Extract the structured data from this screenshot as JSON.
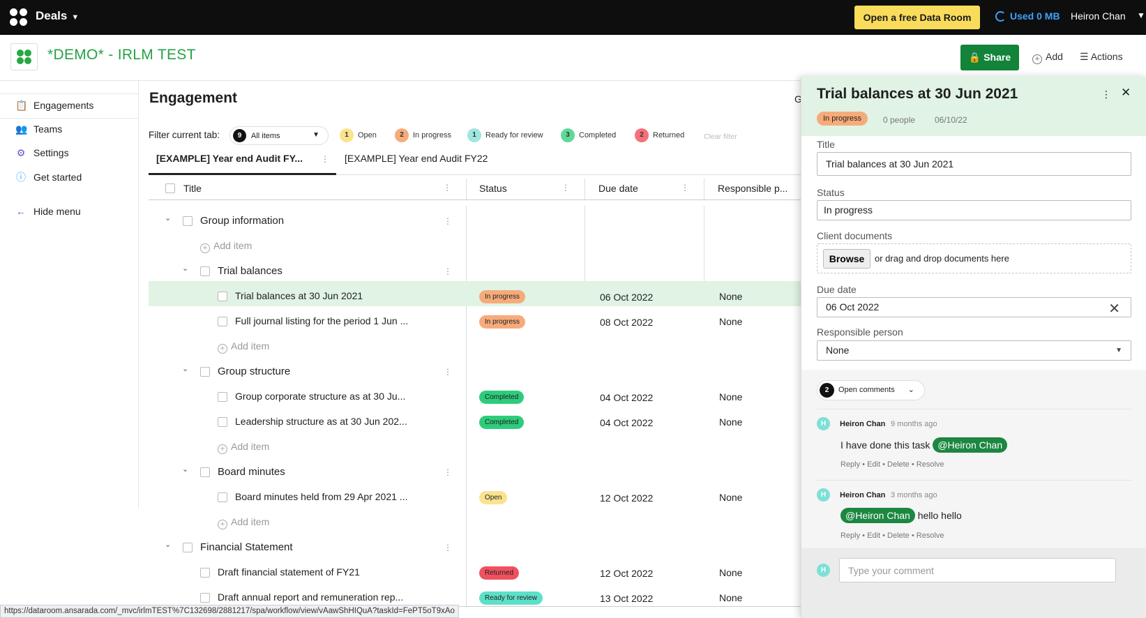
{
  "topbar": {
    "app_title": "Deals",
    "dataroom_button": "Open a free Data Room",
    "used": "Used 0 MB",
    "user_name": "Heiron Chan"
  },
  "project": {
    "title": "*DEMO* - IRLM TEST",
    "share_label": "Share",
    "add_label": "Add",
    "actions_label": "Actions"
  },
  "sidebar": {
    "items": [
      {
        "label": "Engagements",
        "icon": "engagements-icon"
      },
      {
        "label": "Teams",
        "icon": "teams-icon"
      },
      {
        "label": "Settings",
        "icon": "settings-icon"
      },
      {
        "label": "Get started",
        "icon": "info-icon"
      }
    ],
    "hide_menu": "Hide menu"
  },
  "main": {
    "title": "Engagement",
    "filter_label": "Filter current tab:",
    "filter_select": {
      "count": "9",
      "label": "All items"
    },
    "filter_chips": [
      {
        "count": "1",
        "label": "Open",
        "color": "#fbe38e"
      },
      {
        "count": "2",
        "label": "In progress",
        "color": "#f7ab7b"
      },
      {
        "count": "1",
        "label": "Ready for review",
        "color": "#9ee7e0"
      },
      {
        "count": "3",
        "label": "Completed",
        "color": "#5fd99a"
      },
      {
        "count": "2",
        "label": "Returned",
        "color": "#f5707a"
      }
    ],
    "clear_filter": "Clear filter",
    "tabs": [
      "[EXAMPLE] Year end Audit FY...",
      "[EXAMPLE] Year end Audit FY22"
    ],
    "columns": [
      "Title",
      "Status",
      "Due date",
      "Responsible p..."
    ],
    "add_item_label": "Add item",
    "groups": {
      "g1": "Group information",
      "g1a": "Trial balances",
      "g1b": "Group structure",
      "g1c": "Board minutes",
      "g2": "Financial Statement"
    },
    "rows": [
      {
        "title": "Trial balances at 30 Jun 2021",
        "status": "In progress",
        "due": "06 Oct 2022",
        "resp": "None"
      },
      {
        "title": "Full journal listing for the period 1 Jun ...",
        "status": "In progress",
        "due": "08 Oct 2022",
        "resp": "None"
      },
      {
        "title": "Group corporate structure as at 30 Ju...",
        "status": "Completed",
        "due": "04 Oct 2022",
        "resp": "None"
      },
      {
        "title": "Leadership structure as at 30 Jun 202...",
        "status": "Completed",
        "due": "04 Oct 2022",
        "resp": "None"
      },
      {
        "title": "Board minutes held from 29 Apr 2021 ...",
        "status": "Open",
        "due": "12 Oct 2022",
        "resp": "None"
      },
      {
        "title": "Draft financial statement of FY21",
        "status": "Returned",
        "due": "12 Oct 2022",
        "resp": "None"
      },
      {
        "title": "Draft annual report and remuneration rep...",
        "status": "Ready for review",
        "due": "13 Oct 2022",
        "resp": "None"
      }
    ],
    "status_colors": {
      "In progress": "#f7ab7b",
      "Completed": "#2ecc7a",
      "Open": "#fbe38e",
      "Returned": "#f0515f",
      "Ready for review": "#5de0c8"
    }
  },
  "panel": {
    "title": "Trial balances at 30 Jun 2021",
    "status": "In progress",
    "people": "0 people",
    "date": "06/10/22",
    "fields": {
      "title_label": "Title",
      "title_value": "Trial balances at 30 Jun 2021",
      "status_label": "Status",
      "status_value": "In progress",
      "docs_label": "Client documents",
      "browse": "Browse",
      "drop_text": "or drag and drop documents here",
      "due_label": "Due date",
      "due_value": "06 Oct 2022",
      "resp_label": "Responsible person",
      "resp_value": "None"
    },
    "open_comments": {
      "count": "2",
      "label": "Open comments"
    },
    "comments": [
      {
        "initial": "H",
        "author": "Heiron Chan",
        "time": "9 months ago",
        "text": "I have done this task",
        "mention": "@Heiron Chan",
        "actions": "Reply • Edit • Delete • Resolve"
      },
      {
        "initial": "H",
        "author": "Heiron Chan",
        "time": "3 months ago",
        "text": "hello hello",
        "mention": "@Heiron Chan",
        "actions": "Reply • Edit • Delete • Resolve"
      }
    ],
    "compose_initial": "H",
    "compose_placeholder": "Type your comment"
  },
  "status_url": "https://dataroom.ansarada.com/_mvc/irlmTEST%7C132698/2881217/spa/workflow/view/vAawShHIQuA?taskId=FePT5oT9xAo",
  "cut_off_header": "G"
}
